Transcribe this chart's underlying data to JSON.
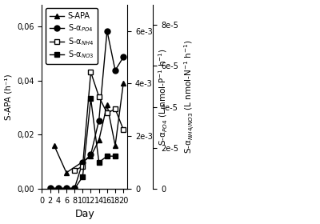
{
  "days_apa": [
    3,
    6,
    12,
    14,
    16,
    18,
    20
  ],
  "apa": [
    0.016,
    0.006,
    0.012,
    0.018,
    0.031,
    0.016,
    0.039
  ],
  "days_po4": [
    2,
    4,
    6,
    8,
    10,
    12,
    14,
    16,
    18,
    20
  ],
  "po4": [
    3e-05,
    3e-05,
    3e-05,
    3e-05,
    0.001,
    0.0013,
    0.0026,
    0.006,
    0.0045,
    0.005
  ],
  "days_nh4": [
    8,
    10,
    12,
    14,
    16,
    18,
    20
  ],
  "nh4": [
    9e-06,
    1.1e-05,
    5.7e-05,
    4.5e-05,
    3.7e-05,
    3.9e-05,
    2.9e-05
  ],
  "days_no3": [
    2,
    4,
    6,
    8,
    10,
    12,
    14,
    16,
    18
  ],
  "no3": [
    0.0,
    0.0,
    0.0,
    0.0,
    6e-06,
    4.4e-05,
    1.3e-05,
    1.6e-05,
    1.6e-05
  ],
  "xlim": [
    0,
    21
  ],
  "xticks": [
    0,
    2,
    4,
    6,
    8,
    10,
    12,
    14,
    16,
    18,
    20
  ],
  "ylim_left": [
    0,
    0.068
  ],
  "yticks_left": [
    0.0,
    0.02,
    0.04,
    0.06
  ],
  "ytick_labels_left": [
    "0,00",
    "0,02",
    "0,04",
    "0,06"
  ],
  "ylabel_left": "S-APA (h⁻¹)",
  "ylim_middle": [
    0,
    0.007
  ],
  "yticks_middle": [
    0,
    0.002,
    0.004,
    0.006
  ],
  "ytick_labels_middle": [
    "0",
    "2e-3",
    "4e-3",
    "6e-3"
  ],
  "ylabel_middle": "S-α $_\\mathregular{PO4}$ (L nmol-P⁻¹ h⁻¹)",
  "ylim_right": [
    0,
    9e-05
  ],
  "yticks_right": [
    0,
    2e-05,
    4e-05,
    6e-05,
    8e-05
  ],
  "ytick_labels_right": [
    "0",
    "2e-5",
    "4e-5",
    "6e-5",
    "8e-5"
  ],
  "ylabel_right": "S-α $_\\mathregular{NH4/NO3}$ (L nmol-N⁻¹ h⁻¹)",
  "xlabel": "Day",
  "legend_labels": [
    "S-APA",
    "S-α$_{PO4}$",
    "S-α$_{NH4}$",
    "S-α$_{NO3}$"
  ],
  "color": "black",
  "bg_color": "white"
}
